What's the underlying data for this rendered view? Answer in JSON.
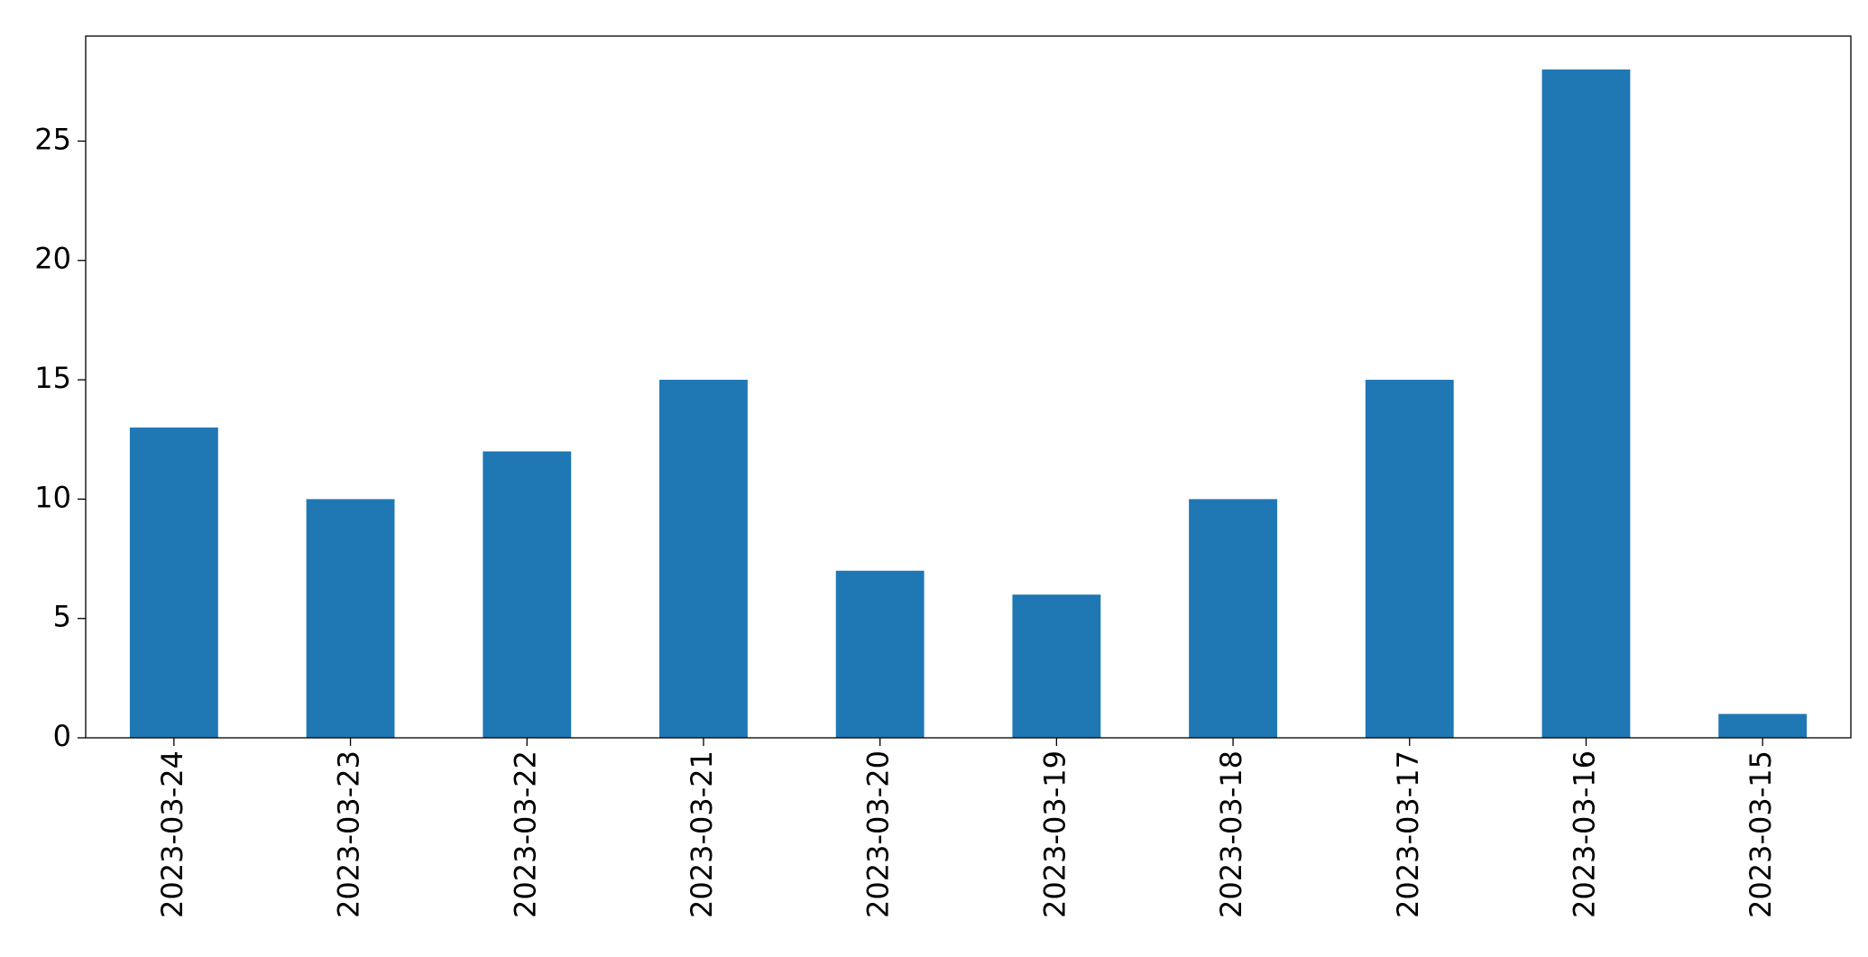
{
  "chart_data": {
    "type": "bar",
    "categories": [
      "2023-03-24",
      "2023-03-23",
      "2023-03-22",
      "2023-03-21",
      "2023-03-20",
      "2023-03-19",
      "2023-03-18",
      "2023-03-17",
      "2023-03-16",
      "2023-03-15"
    ],
    "values": [
      13,
      10,
      12,
      15,
      7,
      6,
      10,
      15,
      28,
      1
    ],
    "color": "#1f77b4",
    "ylim": [
      0,
      29.4
    ],
    "yticks": [
      0,
      5,
      10,
      15,
      20,
      25
    ],
    "grid": false
  }
}
